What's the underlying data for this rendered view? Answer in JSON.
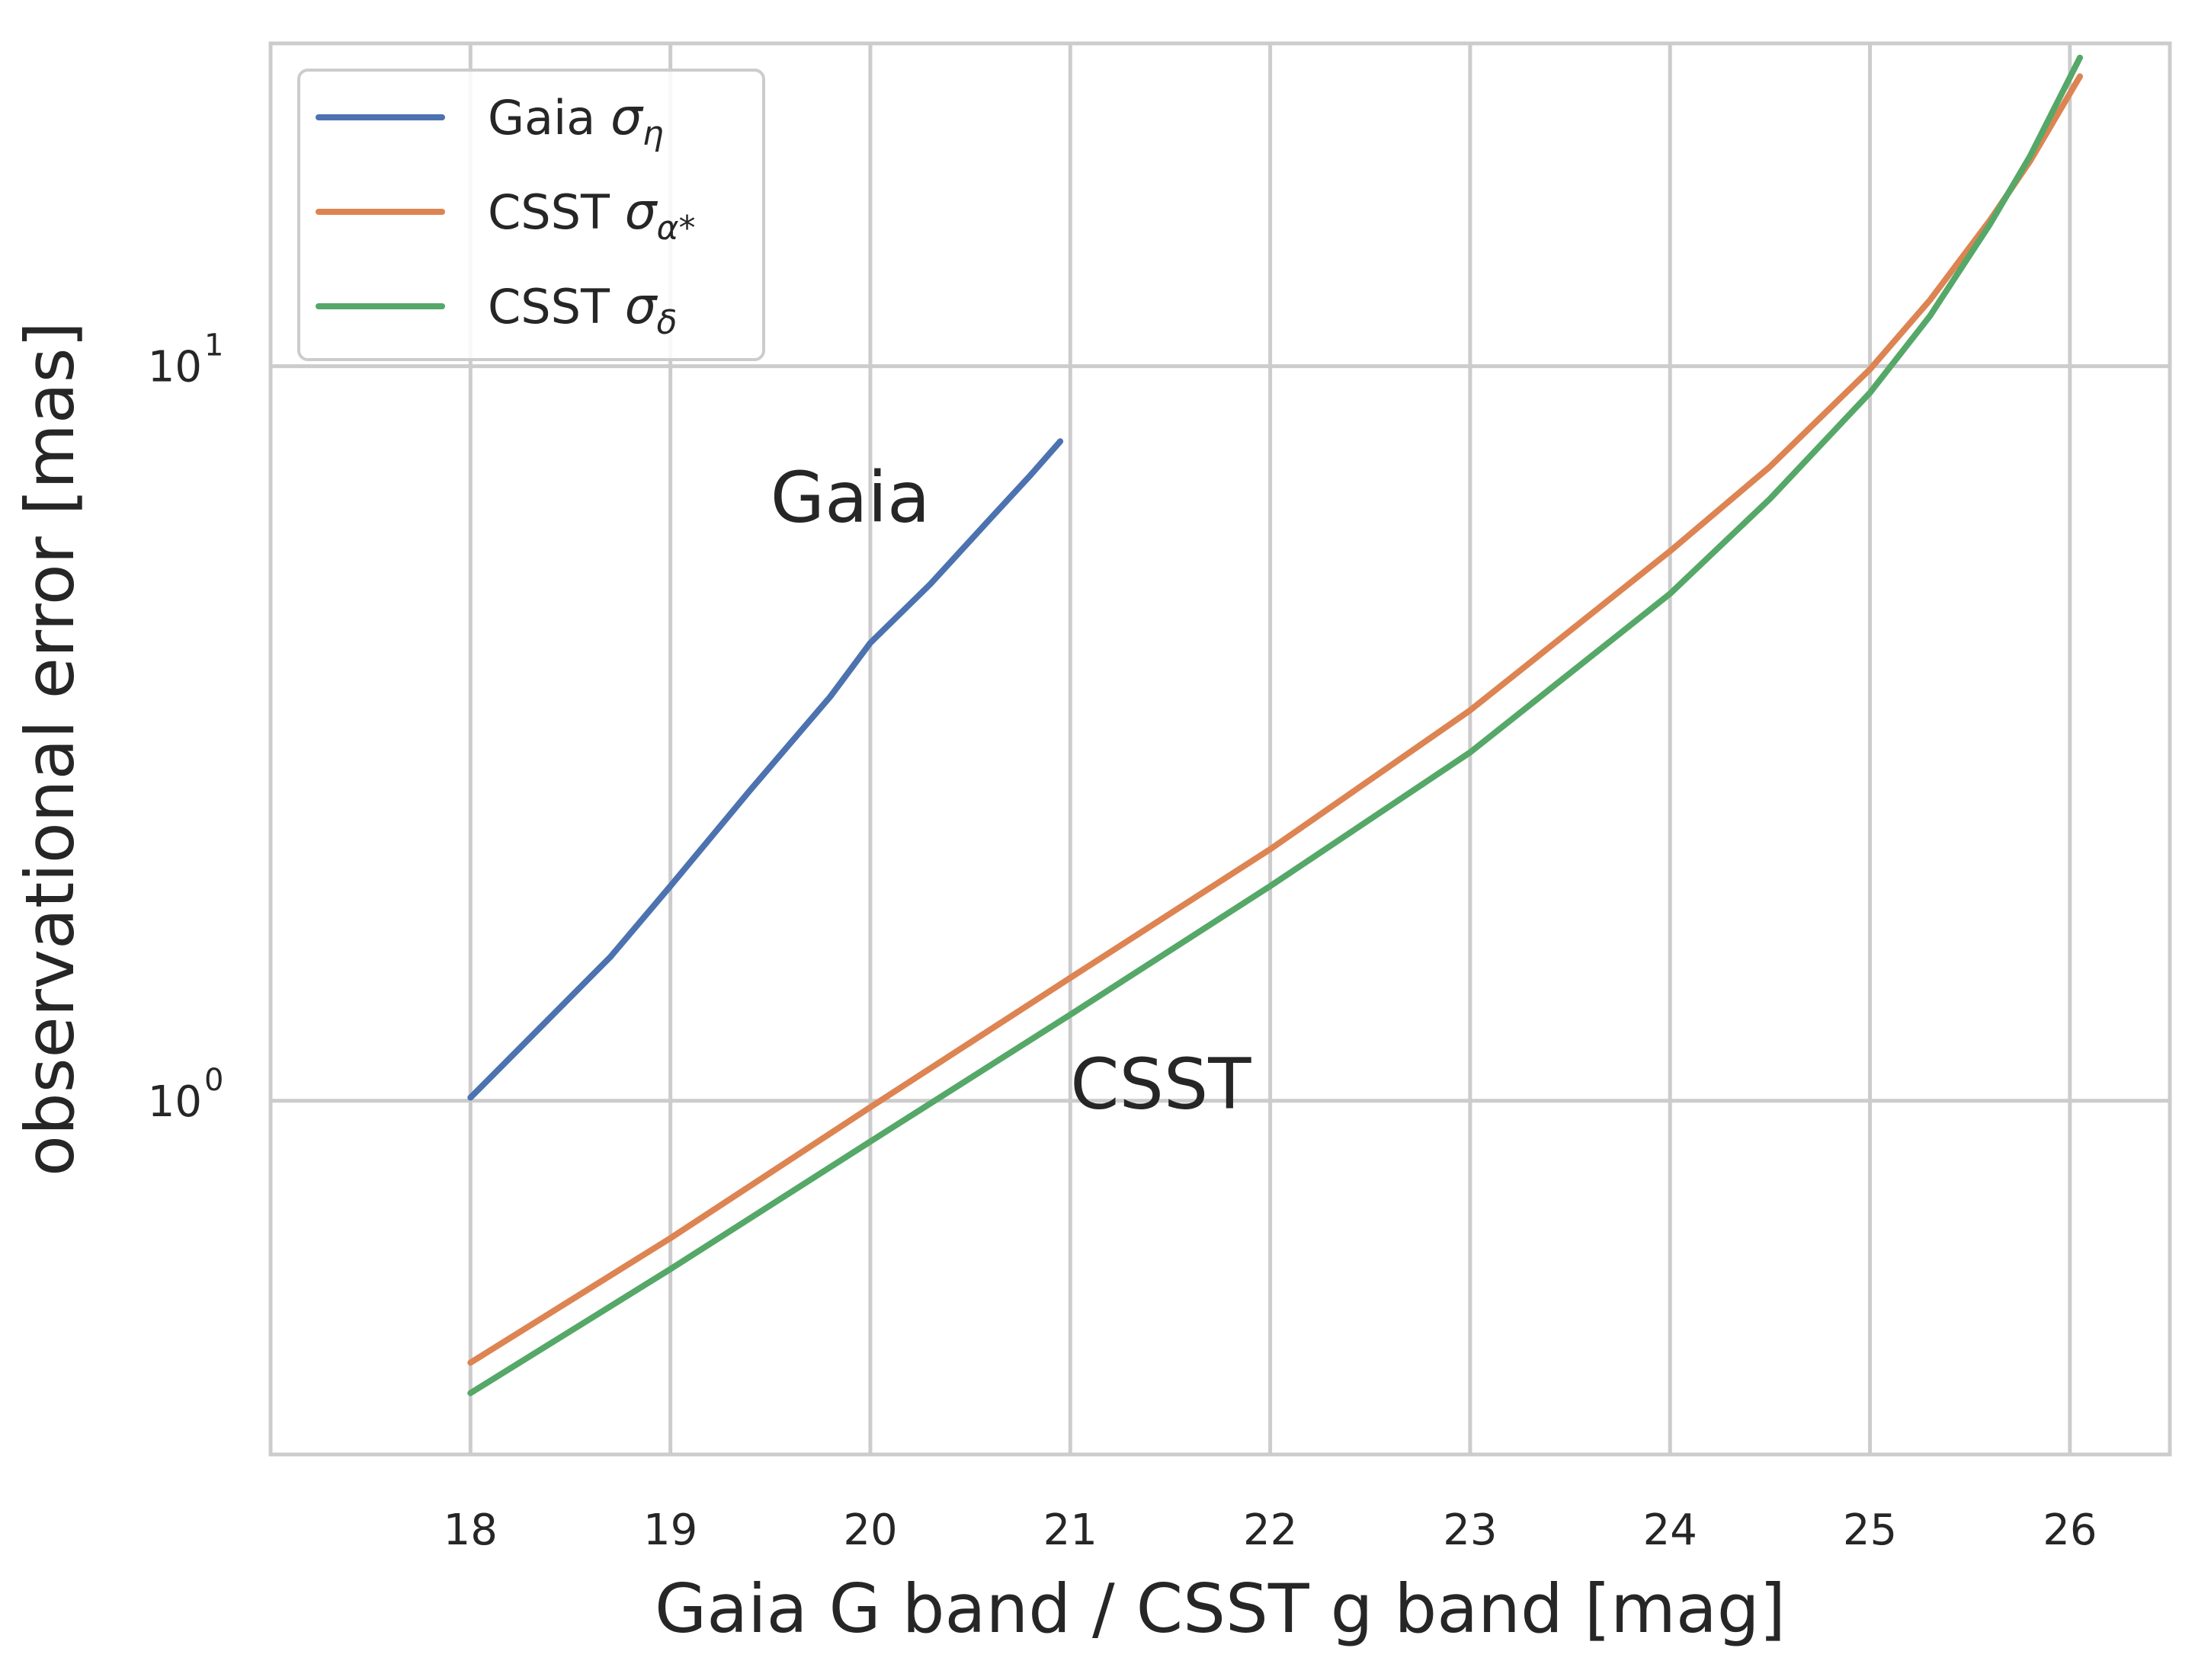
{
  "chart_data": {
    "type": "line",
    "xlabel": "Gaia G band / CSST g band [mag]",
    "ylabel": "observational error [mas]",
    "xlim": [
      17,
      26.5
    ],
    "ylim": [
      0.33,
      27.5
    ],
    "yscale": "log",
    "grid": true,
    "legend_position": "top-left",
    "x_ticks": [
      18,
      19,
      20,
      21,
      22,
      23,
      24,
      25,
      26
    ],
    "y_ticks": [
      {
        "value": 1,
        "base": "10",
        "exponent": "0"
      },
      {
        "value": 10,
        "base": "10",
        "exponent": "1"
      }
    ],
    "series": [
      {
        "name": "Gaia σ_η",
        "legend_base": "Gaia ",
        "legend_symbol": "σ",
        "legend_sub": "η",
        "color": "#4c72b0",
        "x": [
          18.0,
          18.3,
          18.7,
          19.0,
          19.4,
          19.8,
          20.0,
          20.3,
          20.6,
          20.8,
          20.95
        ],
        "y": [
          1.01,
          1.22,
          1.57,
          1.96,
          2.65,
          3.55,
          4.2,
          5.05,
          6.2,
          7.1,
          7.9
        ]
      },
      {
        "name": "CSST σ_α*",
        "legend_base": "CSST ",
        "legend_symbol": "σ",
        "legend_sub": "α*",
        "color": "#dd8452",
        "x": [
          18.0,
          19.0,
          20.0,
          21.0,
          22.0,
          23.0,
          24.0,
          24.5,
          25.0,
          25.3,
          25.6,
          25.8,
          26.05
        ],
        "y": [
          0.44,
          0.65,
          0.98,
          1.47,
          2.2,
          3.4,
          5.6,
          7.3,
          9.9,
          12.3,
          15.8,
          19.0,
          24.8
        ]
      },
      {
        "name": "CSST σ_δ",
        "legend_base": "CSST ",
        "legend_symbol": "σ",
        "legend_sub": "δ",
        "color": "#55a868",
        "x": [
          18.0,
          19.0,
          20.0,
          21.0,
          22.0,
          23.0,
          24.0,
          24.5,
          25.0,
          25.3,
          25.6,
          25.8,
          26.05
        ],
        "y": [
          0.4,
          0.59,
          0.88,
          1.31,
          1.96,
          2.98,
          4.9,
          6.6,
          9.2,
          11.7,
          15.6,
          19.3,
          26.3
        ]
      }
    ],
    "annotations": [
      {
        "text": "Gaia",
        "x": 19.5,
        "y": 6.6
      },
      {
        "text": "CSST",
        "x": 21.0,
        "y": 1.05
      }
    ]
  }
}
